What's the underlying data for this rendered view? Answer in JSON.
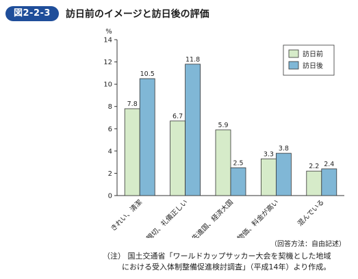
{
  "figure": {
    "number": "図2-2-3",
    "title": "訪日前のイメージと訪日後の評価"
  },
  "colors": {
    "badge": "#1f4e9a",
    "before": "#d6ebc9",
    "after": "#80b7d6"
  },
  "chart_data": {
    "type": "bar",
    "categories": [
      "きれい、清潔",
      "親切、礼儀正しい",
      "先進国、経済大国",
      "物価、料金が高い",
      "混んでいる"
    ],
    "series": [
      {
        "name": "訪日前",
        "values": [
          7.8,
          6.7,
          5.9,
          3.3,
          2.2
        ]
      },
      {
        "name": "訪日後",
        "values": [
          10.5,
          11.8,
          2.5,
          3.8,
          2.4
        ]
      }
    ],
    "ylabel": "%",
    "ylim": [
      0,
      14
    ],
    "yticks": [
      0,
      2,
      4,
      6,
      8,
      10,
      12,
      14
    ],
    "grid": false,
    "legend_position": "top-right"
  },
  "notes": {
    "answer_method": "（回答方法：自由記述）",
    "note_line1": "（注） 国土交通省「ワールドカップサッカー大会を契機とした地域",
    "note_line2": "における受入体制整備促進検討調査」（平成14年）より作成。"
  }
}
